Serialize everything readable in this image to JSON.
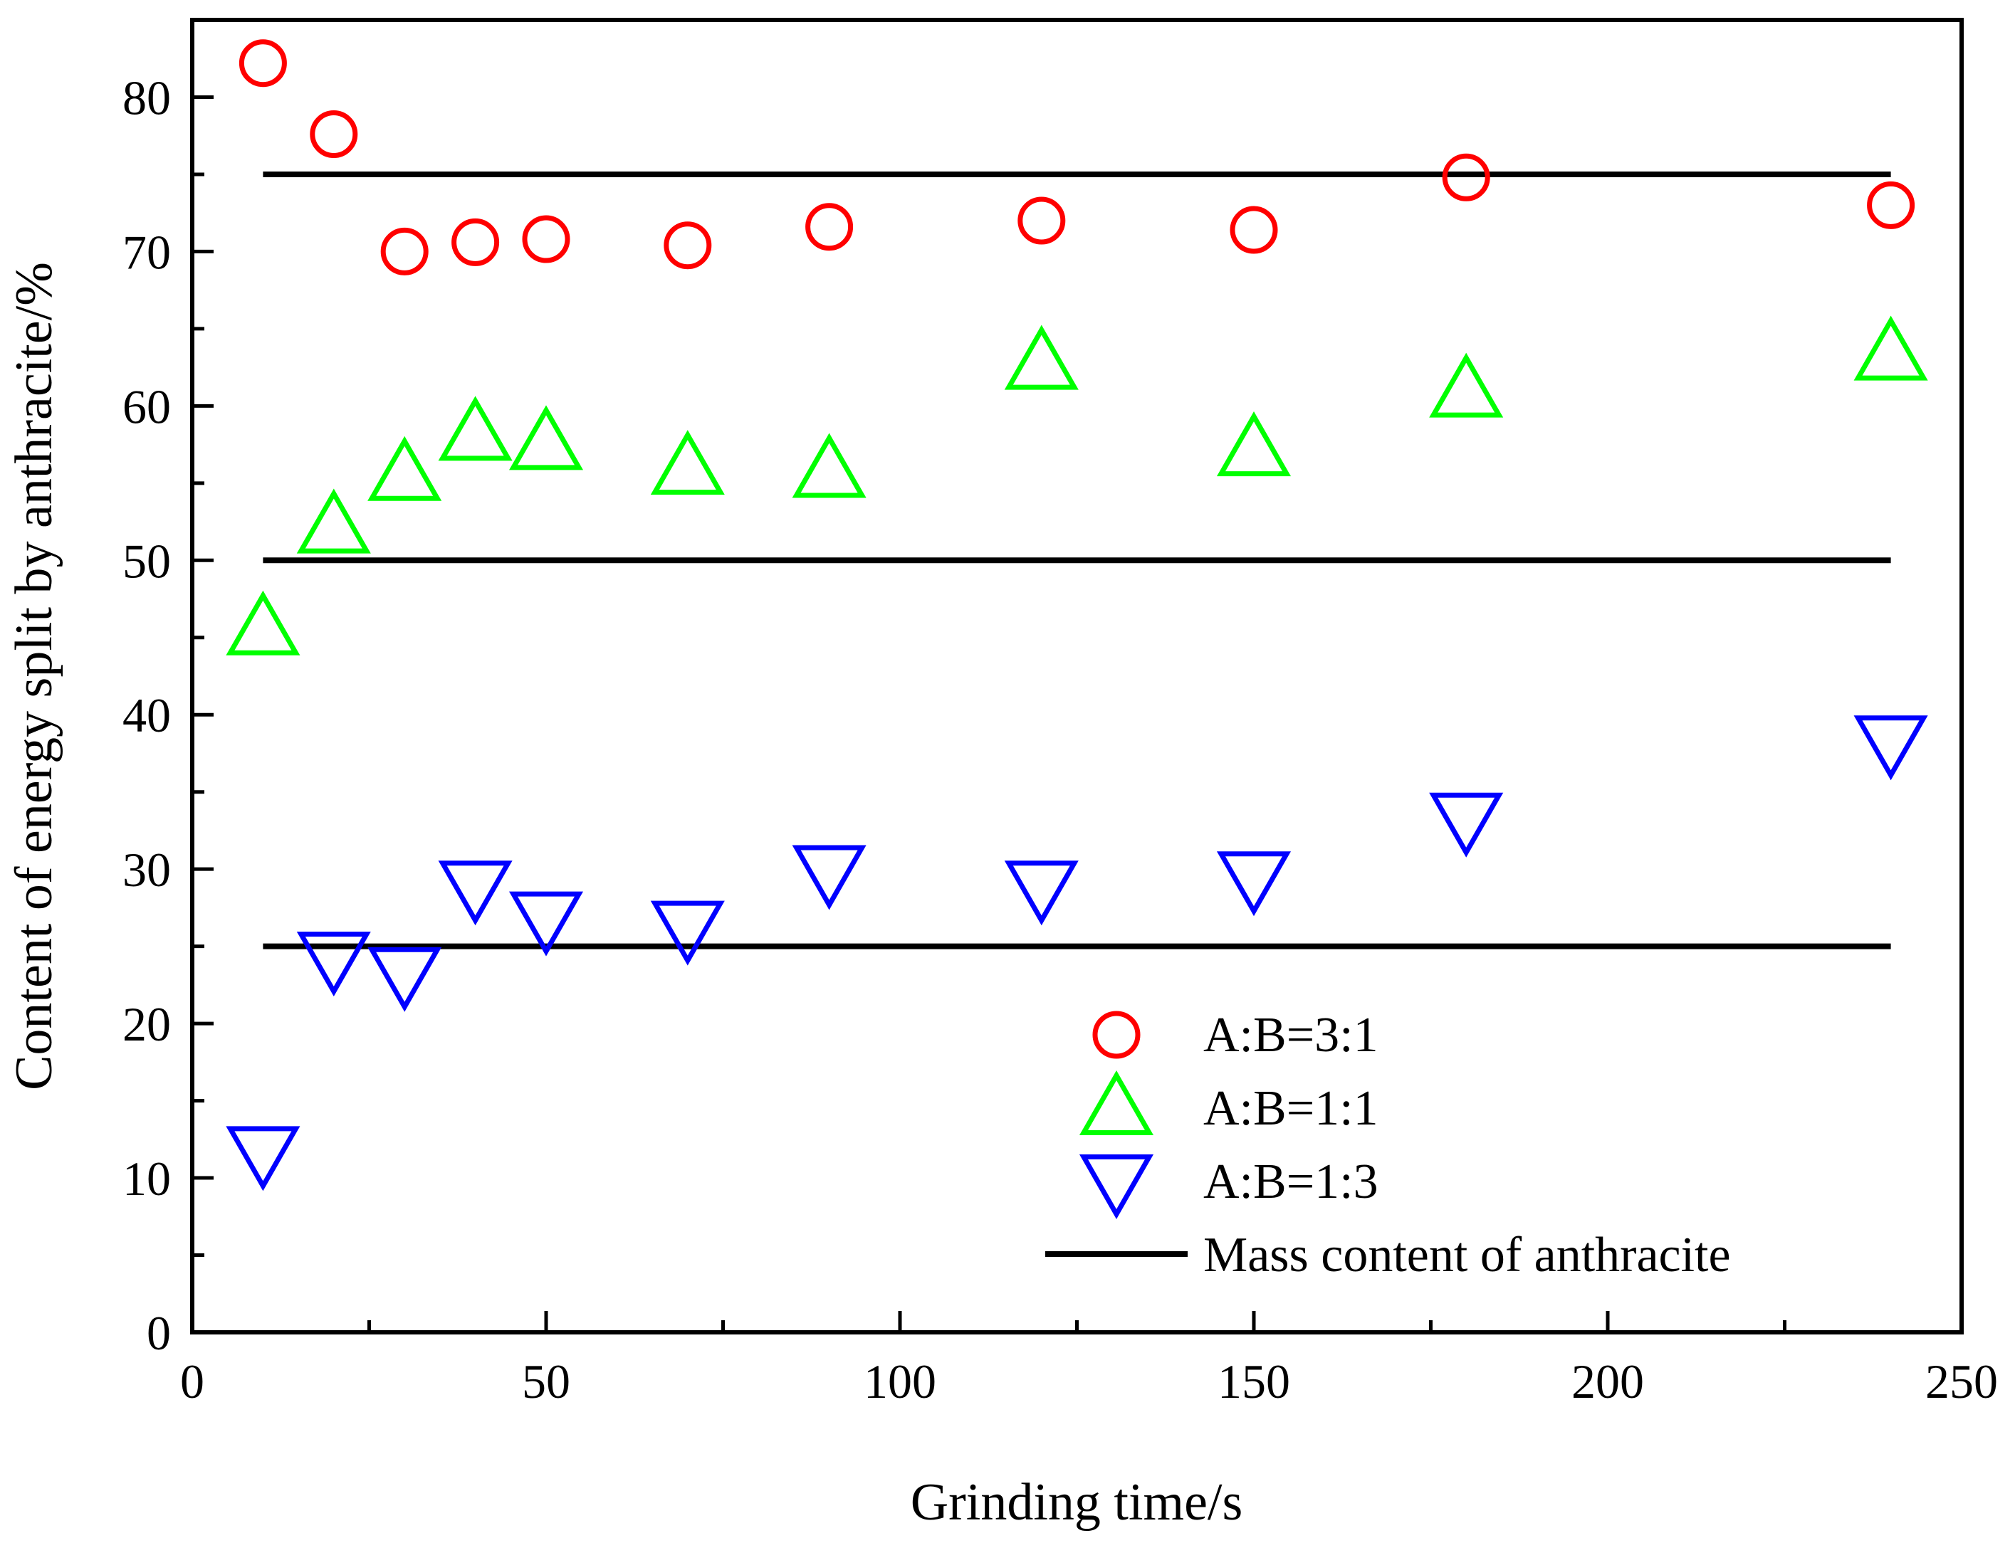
{
  "chart_data": {
    "type": "scatter",
    "xlabel": "Grinding time/s",
    "ylabel": "Content of energy split by anthracite/%",
    "xlim": [
      0,
      250
    ],
    "ylim": [
      0,
      85
    ],
    "xticks": [
      0,
      50,
      100,
      150,
      200,
      250
    ],
    "yticks": [
      0,
      10,
      20,
      30,
      40,
      50,
      60,
      70,
      80
    ],
    "x_minor_step": 25,
    "y_minor_step": 5,
    "grid": false,
    "legend_position": "bottom-right",
    "x": [
      10,
      20,
      30,
      40,
      50,
      70,
      90,
      120,
      150,
      180,
      240
    ],
    "series": [
      {
        "name": "A:B=3:1",
        "marker": "circle",
        "color": "#ff0000",
        "values": [
          82.2,
          77.6,
          70.0,
          70.6,
          70.8,
          70.4,
          71.6,
          72.0,
          71.4,
          74.8,
          73.0
        ]
      },
      {
        "name": "A:B=1:1",
        "marker": "triangle-up",
        "color": "#00ff00",
        "values": [
          45.6,
          52.2,
          55.6,
          58.2,
          57.6,
          56.0,
          55.8,
          62.8,
          57.2,
          61.0,
          63.4
        ]
      },
      {
        "name": "A:B=1:3",
        "marker": "triangle-down",
        "color": "#0000ff",
        "values": [
          11.6,
          24.2,
          23.2,
          28.8,
          26.8,
          26.2,
          29.8,
          28.8,
          29.4,
          33.2,
          38.2
        ]
      }
    ],
    "reference_lines": {
      "name": "Mass content of anthracite",
      "color": "#000000",
      "x_range": [
        10,
        240
      ],
      "values": [
        75,
        50,
        25
      ]
    }
  }
}
